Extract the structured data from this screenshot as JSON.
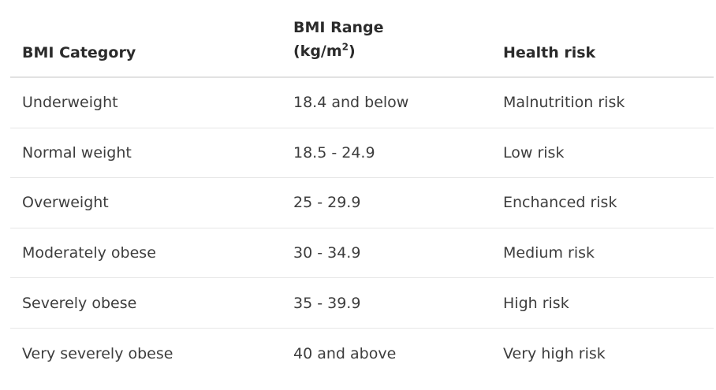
{
  "table": {
    "headers": {
      "category": "BMI Category",
      "range_line1": "BMI Range",
      "range_unit_pre": "(kg/m",
      "range_unit_sup": "2",
      "range_unit_post": ")",
      "risk": "Health risk"
    },
    "rows": [
      {
        "category": "Underweight",
        "range": "18.4 and below",
        "risk": "Malnutrition risk"
      },
      {
        "category": "Normal weight",
        "range": "18.5 - 24.9",
        "risk": "Low risk"
      },
      {
        "category": "Overweight",
        "range": "25 - 29.9",
        "risk": "Enchanced risk"
      },
      {
        "category": "Moderately obese",
        "range": "30 - 34.9",
        "risk": "Medium risk"
      },
      {
        "category": "Severely obese",
        "range": "35 - 39.9",
        "risk": "High risk"
      },
      {
        "category": "Very severely obese",
        "range": "40 and above",
        "risk": "Very high risk"
      }
    ]
  }
}
